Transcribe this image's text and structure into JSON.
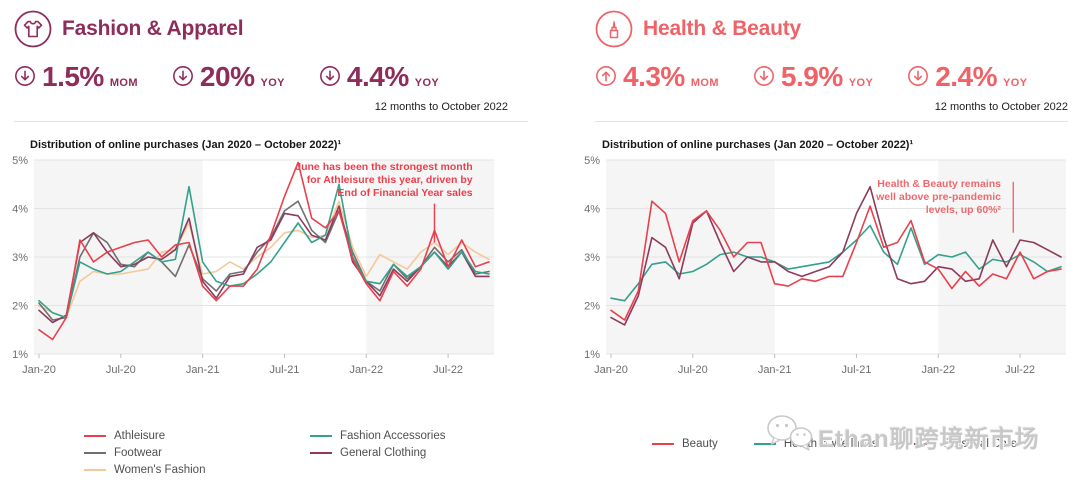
{
  "watermark": {
    "text": "Ethan聊跨境新市场",
    "icon": "wechat-icon"
  },
  "panels": [
    {
      "title": "Fashion & Apparel",
      "icon": "tshirt-icon",
      "accent": "#8e2c5a",
      "stats": [
        {
          "direction": "down",
          "value": "1.5%",
          "unit": "MOM"
        },
        {
          "direction": "down",
          "value": "20%",
          "unit": "YOY"
        },
        {
          "direction": "down",
          "value": "4.4%",
          "unit": "YOY"
        }
      ],
      "stats_caption": "12 months to October 2022",
      "legend_columns": [
        [
          {
            "label": "Athleisure",
            "color": "#e8404d"
          },
          {
            "label": "Footwear",
            "color": "#6f6f6f"
          },
          {
            "label": "Women's Fashion",
            "color": "#f5c89a"
          }
        ],
        [
          {
            "label": "Fashion Accessories",
            "color": "#33a18c"
          },
          {
            "label": "General Clothing",
            "color": "#8d3a5c"
          }
        ]
      ]
    },
    {
      "title": "Health & Beauty",
      "icon": "lipstick-icon",
      "accent": "#ef6267",
      "stats": [
        {
          "direction": "up",
          "value": "4.3%",
          "unit": "MOM"
        },
        {
          "direction": "down",
          "value": "5.9%",
          "unit": "YOY"
        },
        {
          "direction": "down",
          "value": "2.4%",
          "unit": "YOY"
        }
      ],
      "stats_caption": "12 months to October 2022",
      "legend_columns": [
        [
          {
            "label": "Beauty",
            "color": "#e8404d"
          }
        ],
        [
          {
            "label": "Health & Wellness",
            "color": "#33a18c"
          }
        ],
        [
          {
            "label": "Personal Care",
            "color": "#8d3a5c"
          }
        ]
      ]
    }
  ],
  "chart_data": [
    {
      "type": "line",
      "title": "Distribution of online purchases (Jan 2020 – October 2022)¹",
      "x_start": "Jan-20",
      "x_end": "Oct-22",
      "ylim": [
        1,
        5
      ],
      "y_tick_labels": [
        "1%",
        "2%",
        "3%",
        "4%",
        "5%"
      ],
      "x_tick_labels": [
        "Jan-20",
        "Jul-20",
        "Jan-21",
        "Jul-21",
        "Jan-22",
        "Jul-22"
      ],
      "x_tick_months": [
        0,
        6,
        12,
        18,
        24,
        30
      ],
      "shaded_year_bands": [
        [
          0,
          12
        ],
        [
          24,
          34
        ]
      ],
      "band_color": "#f5f5f5",
      "grid_color": "#e4e4e4",
      "series": [
        {
          "name": "Women's Fashion",
          "color": "#f5c89a",
          "values": [
            2.0,
            1.85,
            1.75,
            2.5,
            2.7,
            2.65,
            2.65,
            2.7,
            2.75,
            3.1,
            3.15,
            3.7,
            2.65,
            2.7,
            2.9,
            2.75,
            3.0,
            3.2,
            3.5,
            3.55,
            3.4,
            3.45,
            4.15,
            3.2,
            2.6,
            3.05,
            2.9,
            2.75,
            3.1,
            3.3,
            3.05,
            3.3,
            3.1,
            2.95
          ]
        },
        {
          "name": "Footwear",
          "color": "#6f6f6f",
          "values": [
            2.05,
            1.7,
            1.75,
            3.0,
            3.5,
            3.3,
            2.85,
            2.8,
            3.1,
            2.9,
            2.6,
            3.25,
            2.55,
            2.3,
            2.65,
            2.7,
            3.1,
            3.4,
            3.95,
            4.15,
            3.55,
            3.3,
            3.95,
            3.1,
            2.5,
            2.3,
            2.85,
            2.55,
            2.8,
            3.2,
            2.9,
            3.15,
            2.65,
            2.7
          ]
        },
        {
          "name": "General Clothing",
          "color": "#8d3a5c",
          "values": [
            1.9,
            1.65,
            1.8,
            3.3,
            3.5,
            3.1,
            2.8,
            2.85,
            3.0,
            2.95,
            3.15,
            3.8,
            2.5,
            2.15,
            2.6,
            2.65,
            3.2,
            3.35,
            3.9,
            3.85,
            3.45,
            3.35,
            4.05,
            2.9,
            2.5,
            2.2,
            2.75,
            2.5,
            2.8,
            3.1,
            2.8,
            3.1,
            2.6,
            2.6
          ]
        },
        {
          "name": "Fashion Accessories",
          "color": "#33a18c",
          "values": [
            2.1,
            1.85,
            1.75,
            2.9,
            2.75,
            2.65,
            2.7,
            2.9,
            3.1,
            2.9,
            2.95,
            4.45,
            2.9,
            2.5,
            2.4,
            2.45,
            2.65,
            2.9,
            3.3,
            3.7,
            3.3,
            3.45,
            4.5,
            3.0,
            2.5,
            2.45,
            2.85,
            2.6,
            2.8,
            3.1,
            2.75,
            3.1,
            2.7,
            2.65
          ]
        },
        {
          "name": "Athleisure",
          "color": "#e8404d",
          "values": [
            1.5,
            1.3,
            1.75,
            3.35,
            2.9,
            3.1,
            3.2,
            3.3,
            3.35,
            3.0,
            3.25,
            3.3,
            2.4,
            2.1,
            2.4,
            2.4,
            2.75,
            3.45,
            4.25,
            4.95,
            3.8,
            3.6,
            3.95,
            2.95,
            2.45,
            2.1,
            2.7,
            2.4,
            2.75,
            3.55,
            2.8,
            3.35,
            2.8,
            2.9
          ]
        }
      ],
      "annotation": {
        "lines": [
          "June has been the strongest month",
          "for Athleisure this year, driven by",
          "End of Financial Year sales"
        ],
        "color": "#ee3e4b",
        "line_month": 29,
        "line_top": 4.1,
        "line_bottom": 3.3,
        "text_right_month": 31.8,
        "text_top": 5.0
      }
    },
    {
      "type": "line",
      "title": "Distribution of online purchases (Jan 2020 – October 2022)¹",
      "x_start": "Jan-20",
      "x_end": "Oct-22",
      "ylim": [
        1,
        5
      ],
      "y_tick_labels": [
        "1%",
        "2%",
        "3%",
        "4%",
        "5%"
      ],
      "x_tick_labels": [
        "Jan-20",
        "Jul-20",
        "Jan-21",
        "Jul-21",
        "Jan-22",
        "Jul-22"
      ],
      "x_tick_months": [
        0,
        6,
        12,
        18,
        24,
        30
      ],
      "shaded_year_bands": [
        [
          0,
          12
        ],
        [
          24,
          34
        ]
      ],
      "band_color": "#f5f5f5",
      "grid_color": "#e4e4e4",
      "series": [
        {
          "name": "Health & Wellness",
          "color": "#33a18c",
          "values": [
            2.15,
            2.1,
            2.45,
            2.85,
            2.9,
            2.65,
            2.7,
            2.85,
            3.05,
            3.1,
            3.0,
            3.0,
            2.9,
            2.75,
            2.8,
            2.85,
            2.9,
            3.1,
            3.35,
            3.65,
            3.1,
            2.85,
            3.6,
            2.85,
            3.05,
            3.0,
            3.1,
            2.75,
            2.95,
            2.9,
            3.05,
            2.9,
            2.7,
            2.8
          ]
        },
        {
          "name": "Personal Care",
          "color": "#8d3a5c",
          "values": [
            1.75,
            1.6,
            2.2,
            3.4,
            3.2,
            2.55,
            3.7,
            3.95,
            3.3,
            2.7,
            3.0,
            2.9,
            2.9,
            2.7,
            2.6,
            2.7,
            2.8,
            3.1,
            3.9,
            4.45,
            3.4,
            2.55,
            2.45,
            2.5,
            2.8,
            2.75,
            2.5,
            2.55,
            3.35,
            2.8,
            3.35,
            3.3,
            3.15,
            3.0
          ]
        },
        {
          "name": "Beauty",
          "color": "#e8404d",
          "values": [
            1.9,
            1.7,
            2.3,
            4.15,
            3.9,
            2.9,
            3.75,
            3.95,
            3.55,
            3.0,
            3.3,
            3.3,
            2.45,
            2.4,
            2.55,
            2.5,
            2.6,
            2.6,
            3.3,
            4.05,
            3.2,
            3.3,
            3.75,
            2.9,
            2.75,
            2.35,
            2.7,
            2.4,
            2.65,
            2.55,
            3.1,
            2.55,
            2.7,
            2.75
          ]
        }
      ],
      "annotation": {
        "lines": [
          "Health & Beauty remains",
          "well above pre-pandemic",
          "levels, up 60%²"
        ],
        "color": "#ef696d",
        "line_month": 29.5,
        "line_top": 4.55,
        "line_bottom": 3.5,
        "text_right_month": 28.6,
        "text_top": 4.65
      }
    }
  ]
}
